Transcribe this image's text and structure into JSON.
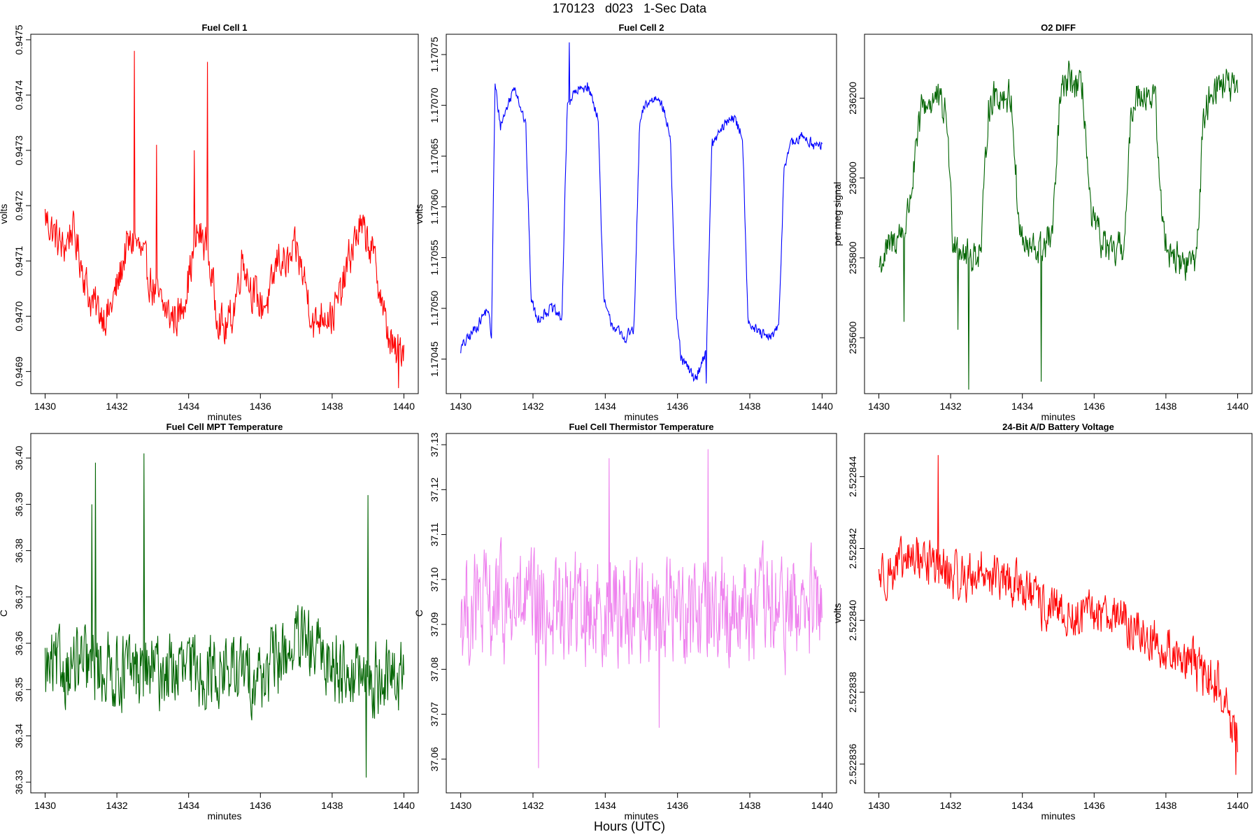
{
  "figure": {
    "title": "170123   d023   1-Sec Data",
    "bottom_label": "Hours (UTC)"
  },
  "chart_data": [
    {
      "type": "line",
      "title": "Fuel Cell 1",
      "xlabel": "minutes",
      "ylabel": "volts",
      "color": "#ff0000",
      "xlim": [
        1429.6,
        1440.4
      ],
      "ylim": [
        0.94686,
        0.94751
      ],
      "xticks": [
        1430,
        1432,
        1434,
        1436,
        1438,
        1440
      ],
      "xtick_labels": [
        "1430",
        "1432",
        "1434",
        "1436",
        "1438",
        "1440"
      ],
      "yticks": [
        0.9469,
        0.947,
        0.9471,
        0.9472,
        0.9473,
        0.9474,
        0.9475
      ],
      "ytick_labels": [
        "0.9469",
        "0.9470",
        "0.9471",
        "0.9472",
        "0.9473",
        "0.9474",
        "0.9475"
      ],
      "series": [
        {
          "name": "Fuel Cell 1",
          "x": [
            1430.0,
            1430.25,
            1430.5,
            1430.75,
            1431.0,
            1431.25,
            1431.5,
            1431.75,
            1432.0,
            1432.25,
            1432.5,
            1432.75,
            1433.0,
            1433.25,
            1433.5,
            1433.75,
            1434.0,
            1434.25,
            1434.5,
            1434.75,
            1435.0,
            1435.25,
            1435.5,
            1435.75,
            1436.0,
            1436.25,
            1436.5,
            1436.75,
            1437.0,
            1437.25,
            1437.5,
            1437.75,
            1438.0,
            1438.25,
            1438.5,
            1438.75,
            1439.0,
            1439.25,
            1439.5,
            1439.75,
            1440.0
          ],
          "values": [
            0.94718,
            0.94715,
            0.94712,
            0.94716,
            0.9471,
            0.94703,
            0.94701,
            0.947,
            0.94705,
            0.94712,
            0.94714,
            0.9471,
            0.94705,
            0.94702,
            0.947,
            0.947,
            0.94707,
            0.94715,
            0.94713,
            0.94702,
            0.94697,
            0.94701,
            0.94711,
            0.94705,
            0.94702,
            0.94703,
            0.94711,
            0.94709,
            0.94712,
            0.94706,
            0.94698,
            0.94701,
            0.947,
            0.94704,
            0.94711,
            0.94716,
            0.94714,
            0.94708,
            0.94698,
            0.94693,
            0.94695
          ],
          "noise_amplitude": 5e-05,
          "spikes": [
            {
              "x": 1432.48,
              "y": 0.94748
            },
            {
              "x": 1434.53,
              "y": 0.94746
            },
            {
              "x": 1433.1,
              "y": 0.94731
            },
            {
              "x": 1434.15,
              "y": 0.9473
            },
            {
              "x": 1439.85,
              "y": 0.94687
            }
          ]
        }
      ]
    },
    {
      "type": "line",
      "title": "Fuel Cell 2",
      "xlabel": "minutes",
      "ylabel": "volts",
      "color": "#0000ff",
      "xlim": [
        1429.6,
        1440.4
      ],
      "ylim": [
        1.170416,
        1.17077
      ],
      "xticks": [
        1430,
        1432,
        1434,
        1436,
        1438,
        1440
      ],
      "xtick_labels": [
        "1430",
        "1432",
        "1434",
        "1436",
        "1438",
        "1440"
      ],
      "yticks": [
        1.17045,
        1.1705,
        1.17055,
        1.1706,
        1.17065,
        1.1707,
        1.17075
      ],
      "ytick_labels": [
        "1.17045",
        "1.17050",
        "1.17055",
        "1.17060",
        "1.17065",
        "1.17070",
        "1.17075"
      ],
      "series": [
        {
          "name": "Fuel Cell 2",
          "x": [
            1430.0,
            1430.4,
            1430.75,
            1430.85,
            1430.95,
            1431.1,
            1431.5,
            1431.8,
            1431.95,
            1432.1,
            1432.5,
            1432.8,
            1432.95,
            1433.1,
            1433.5,
            1433.8,
            1433.95,
            1434.1,
            1434.5,
            1434.8,
            1434.95,
            1435.1,
            1435.5,
            1435.8,
            1435.95,
            1436.1,
            1436.5,
            1436.8,
            1436.95,
            1437.1,
            1437.5,
            1437.8,
            1437.95,
            1438.1,
            1438.5,
            1438.8,
            1438.95,
            1439.1,
            1439.5,
            1439.8,
            1440.0
          ],
          "values": [
            1.17046,
            1.17048,
            1.1705,
            1.17047,
            1.17072,
            1.17068,
            1.17072,
            1.17068,
            1.17051,
            1.17049,
            1.1705,
            1.17049,
            1.1707,
            1.17071,
            1.17072,
            1.17069,
            1.17051,
            1.17049,
            1.17047,
            1.17048,
            1.17068,
            1.1707,
            1.17071,
            1.17067,
            1.1705,
            1.17045,
            1.17043,
            1.17046,
            1.17066,
            1.17067,
            1.17069,
            1.17067,
            1.17049,
            1.17048,
            1.17047,
            1.17048,
            1.17064,
            1.17066,
            1.17067,
            1.17066,
            1.17066
          ],
          "noise_amplitude": 8e-06,
          "spikes": [
            {
              "x": 1433.0,
              "y": 1.170762
            },
            {
              "x": 1436.8,
              "y": 1.170426
            }
          ]
        }
      ]
    },
    {
      "type": "line",
      "title": "O2 DIFF",
      "xlabel": "minutes",
      "ylabel": "per meg signal",
      "color": "#006400",
      "xlim": [
        1429.6,
        1440.4
      ],
      "ylim": [
        235460,
        236360
      ],
      "xticks": [
        1430,
        1432,
        1434,
        1436,
        1438,
        1440
      ],
      "xtick_labels": [
        "1430",
        "1432",
        "1434",
        "1436",
        "1438",
        "1440"
      ],
      "yticks": [
        235600,
        235800,
        236000,
        236200
      ],
      "ytick_labels": [
        "235600",
        "235800",
        "236000",
        "236200"
      ],
      "series": [
        {
          "name": "O2 DIFF",
          "x": [
            1430.0,
            1430.4,
            1430.75,
            1430.95,
            1431.2,
            1431.6,
            1431.9,
            1432.05,
            1432.5,
            1432.85,
            1433.05,
            1433.3,
            1433.7,
            1433.9,
            1434.1,
            1434.5,
            1434.85,
            1435.05,
            1435.3,
            1435.7,
            1435.9,
            1436.1,
            1436.5,
            1436.85,
            1437.05,
            1437.3,
            1437.7,
            1437.9,
            1438.1,
            1438.5,
            1438.85,
            1439.05,
            1439.3,
            1439.7,
            1440.0
          ],
          "values": [
            235780,
            235840,
            235880,
            236000,
            236180,
            236200,
            236150,
            235860,
            235800,
            235820,
            236180,
            236210,
            236200,
            235880,
            235820,
            235820,
            235860,
            236200,
            236250,
            236210,
            235900,
            235860,
            235800,
            235840,
            236180,
            236220,
            236200,
            235880,
            235820,
            235780,
            235800,
            236150,
            236230,
            236240,
            236200
          ],
          "noise_amplitude": 60,
          "spikes": [
            {
              "x": 1432.5,
              "y": 235470
            },
            {
              "x": 1434.52,
              "y": 235490
            },
            {
              "x": 1432.2,
              "y": 235620
            },
            {
              "x": 1430.7,
              "y": 235640
            }
          ]
        }
      ]
    },
    {
      "type": "line",
      "title": "Fuel Cell MPT Temperature",
      "xlabel": "minutes",
      "ylabel": "C",
      "color": "#006400",
      "xlim": [
        1429.6,
        1440.4
      ],
      "ylim": [
        36.3277,
        36.4053
      ],
      "xticks": [
        1430,
        1432,
        1434,
        1436,
        1438,
        1440
      ],
      "xtick_labels": [
        "1430",
        "1432",
        "1434",
        "1436",
        "1438",
        "1440"
      ],
      "yticks": [
        36.33,
        36.34,
        36.35,
        36.36,
        36.37,
        36.38,
        36.39,
        36.4
      ],
      "ytick_labels": [
        "36.33",
        "36.34",
        "36.35",
        "36.36",
        "36.37",
        "36.38",
        "36.39",
        "36.40"
      ],
      "series": [
        {
          "name": "MPT Temperature",
          "x": [
            1430.0,
            1431.0,
            1432.0,
            1433.0,
            1434.0,
            1435.0,
            1436.0,
            1437.0,
            1438.0,
            1439.0,
            1440.0
          ],
          "values": [
            36.354,
            36.355,
            36.354,
            36.354,
            36.354,
            36.354,
            36.353,
            36.36,
            36.356,
            36.352,
            36.353
          ],
          "noise_amplitude": 0.011,
          "spikes": [
            {
              "x": 1431.4,
              "y": 36.399
            },
            {
              "x": 1432.75,
              "y": 36.401
            },
            {
              "x": 1439.0,
              "y": 36.392
            },
            {
              "x": 1431.3,
              "y": 36.39
            },
            {
              "x": 1438.95,
              "y": 36.331
            }
          ]
        }
      ]
    },
    {
      "type": "line",
      "title": "Fuel Cell Thermistor Temperature",
      "xlabel": "minutes",
      "ylabel": "C",
      "color": "#ee82ee",
      "xlim": [
        1429.6,
        1440.4
      ],
      "ylim": [
        37.0525,
        37.1325
      ],
      "xticks": [
        1430,
        1432,
        1434,
        1436,
        1438,
        1440
      ],
      "xtick_labels": [
        "1430",
        "1432",
        "1434",
        "1436",
        "1438",
        "1440"
      ],
      "yticks": [
        37.06,
        37.07,
        37.08,
        37.09,
        37.1,
        37.11,
        37.12,
        37.13
      ],
      "ytick_labels": [
        "37.06",
        "37.07",
        "37.08",
        "37.09",
        "37.10",
        "37.11",
        "37.12",
        "37.13"
      ],
      "series": [
        {
          "name": "Thermistor Temperature",
          "x": [
            1430.0,
            1431.0,
            1432.0,
            1433.0,
            1434.0,
            1435.0,
            1436.0,
            1437.0,
            1438.0,
            1439.0,
            1440.0
          ],
          "values": [
            37.093,
            37.094,
            37.093,
            37.093,
            37.094,
            37.093,
            37.094,
            37.094,
            37.093,
            37.093,
            37.094
          ],
          "noise_amplitude": 0.017,
          "spikes": [
            {
              "x": 1432.15,
              "y": 37.058
            },
            {
              "x": 1436.85,
              "y": 37.129
            },
            {
              "x": 1434.1,
              "y": 37.127
            },
            {
              "x": 1435.5,
              "y": 37.067
            }
          ]
        }
      ]
    },
    {
      "type": "line",
      "title": "24-Bit A/D Battery Voltage",
      "xlabel": "minutes",
      "ylabel": "volts",
      "color": "#ff0000",
      "xlim": [
        1429.6,
        1440.4
      ],
      "ylim": [
        2.5228352,
        2.5228452
      ],
      "xticks": [
        1430,
        1432,
        1434,
        1436,
        1438,
        1440
      ],
      "xtick_labels": [
        "1430",
        "1432",
        "1434",
        "1436",
        "1438",
        "1440"
      ],
      "yticks": [
        2.522836,
        2.522838,
        2.52284,
        2.522842,
        2.522844
      ],
      "ytick_labels": [
        "2.522836",
        "2.522838",
        "2.522840",
        "2.522842",
        "2.522844"
      ],
      "series": [
        {
          "name": "Battery Voltage",
          "x": [
            1430.0,
            1430.5,
            1431.0,
            1431.5,
            1432.0,
            1432.5,
            1433.0,
            1433.5,
            1434.0,
            1434.5,
            1435.0,
            1435.5,
            1436.0,
            1436.5,
            1437.0,
            1437.5,
            1438.0,
            1438.5,
            1439.0,
            1439.5,
            1440.0
          ],
          "values": [
            2.5228413,
            2.5228414,
            2.5228418,
            2.5228416,
            2.5228412,
            2.5228412,
            2.5228414,
            2.522841,
            2.522841,
            2.5228404,
            2.5228402,
            2.52284,
            2.5228402,
            2.5228403,
            2.5228398,
            2.5228395,
            2.5228392,
            2.522839,
            2.5228385,
            2.5228382,
            2.5228365
          ],
          "noise_amplitude": 9e-07,
          "spikes": [
            {
              "x": 1431.65,
              "y": 2.5228446
            },
            {
              "x": 1439.95,
              "y": 2.5228357
            }
          ]
        }
      ]
    }
  ]
}
